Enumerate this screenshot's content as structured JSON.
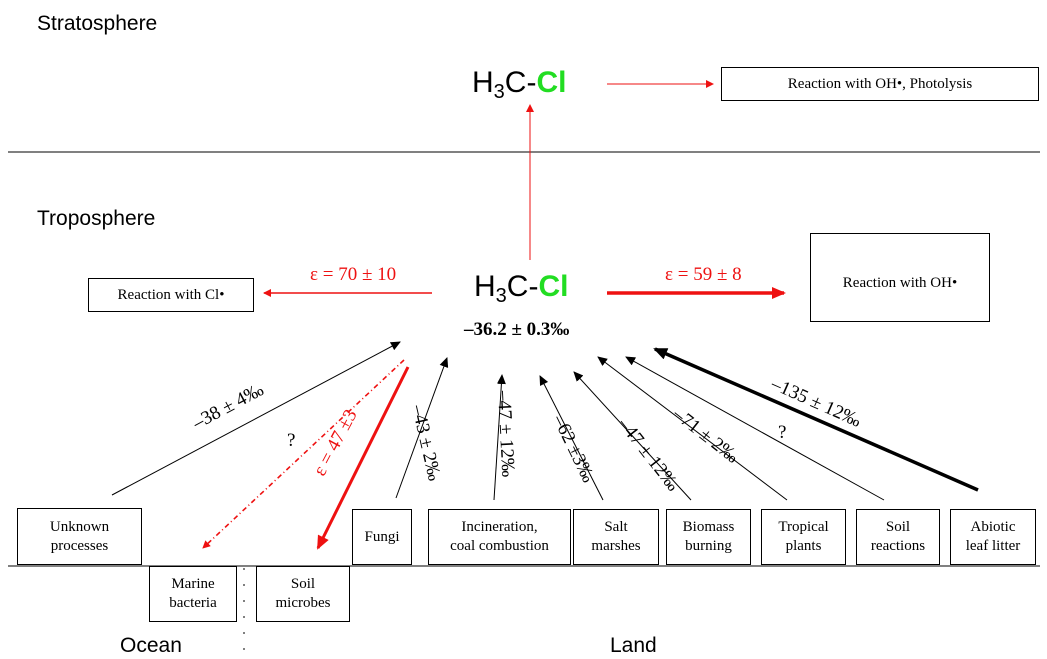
{
  "regions": {
    "stratosphere": "Stratosphere",
    "troposphere": "Troposphere",
    "ocean": "Ocean",
    "land": "Land"
  },
  "molecule": {
    "prefix": "H",
    "subscript": "3",
    "mid": "C-",
    "chlorine": "Cl"
  },
  "strat_sink": "Reaction with OH•, Photolysis",
  "tropo_value": "–36.2 ± 0.3‰",
  "sinks": {
    "cl_radical": {
      "label": "Reaction with Cl•",
      "epsilon": "ε = 70 ± 10"
    },
    "oh_radical": {
      "label": "Reaction with OH•",
      "epsilon": "ε = 59 ± 8"
    }
  },
  "ocean_boxes": {
    "marine_bacteria": "Marine\nbacteria",
    "soil_microbes": "Soil\nmicrobes"
  },
  "sources": [
    {
      "label": "Unknown\nprocesses",
      "value": "–38 ± 4‰"
    },
    {
      "label": "Fungi",
      "value": "–43 ± 2‰"
    },
    {
      "label": "Incineration,\ncoal combustion",
      "value": "–47 ± 12‰"
    },
    {
      "label": "Salt\nmarshes",
      "value": "–62 ±3‰"
    },
    {
      "label": "Biomass\nburning",
      "value": "–47 ± 12‰"
    },
    {
      "label": "Tropical\nplants",
      "value": "–71 ± 2‰"
    },
    {
      "label": "Soil\nreactions",
      "value": "?"
    },
    {
      "label": "Abiotic\nleaf litter",
      "value": "–135 ± 12‰"
    }
  ],
  "ocean_sinks": {
    "marine_bacteria_value": "?",
    "soil_microbes_epsilon": "ε = 47 ±3"
  },
  "colors": {
    "sink_red": "#ee1111",
    "chlorine_green": "#22dd22",
    "line": "#000000"
  }
}
